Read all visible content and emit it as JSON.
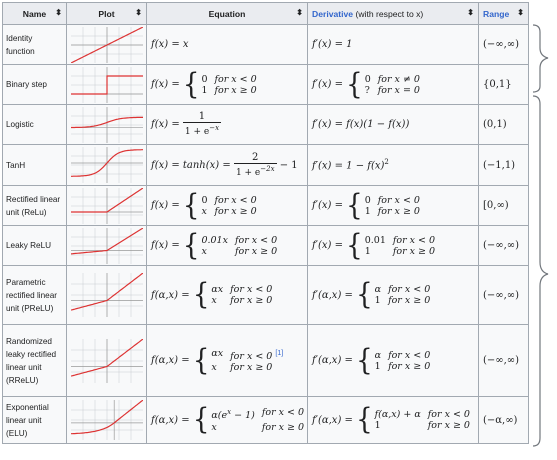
{
  "headers": {
    "name": "Name",
    "plot": "Plot",
    "equation": "Equation",
    "derivative": "Derivative",
    "derivative_suffix": "(with respect to x)",
    "range": "Range",
    "sort_glyph": "⬍"
  },
  "rows": [
    {
      "name": "Identity function",
      "range": "(−∞,∞)",
      "plot": "identity"
    },
    {
      "name": "Binary step",
      "range": "{0,1}",
      "plot": "step"
    },
    {
      "name": "Logistic",
      "range": "(0,1)",
      "plot": "logistic"
    },
    {
      "name": "TanH",
      "range": "(−1,1)",
      "plot": "tanh"
    },
    {
      "name": "Rectified linear unit (ReLu)",
      "range": "[0,∞)",
      "plot": "relu"
    },
    {
      "name": "Leaky ReLU",
      "range": "(−∞,∞)",
      "plot": "leaky"
    },
    {
      "name": "Parametric rectified linear unit (PReLU)",
      "range": "(−∞,∞)",
      "plot": "prelu"
    },
    {
      "name": "Randomized leaky rectified linear unit (RReLU)",
      "range": "(−∞,∞)",
      "plot": "rrelu"
    },
    {
      "name": "Exponential linear unit (ELU)",
      "range": "(−α,∞)",
      "plot": "elu"
    }
  ],
  "eq": {
    "identity": "f(x) = x",
    "identity_der": "f′(x) = 1",
    "lt0": "for x < 0",
    "ge0": "for x ≥ 0",
    "ne0": "for x ≠ 0",
    "eq0": "for x = 0",
    "f_x": "f(x) =",
    "fp_x": "f′(x) =",
    "f_ax": "f(α,x) =",
    "fp_ax": "f′(α,x) =",
    "zero": "0",
    "one": "1",
    "q": "?",
    "x": "x",
    "alpha": "α",
    "alpha_x": "αx",
    "leak_x": "0.01x",
    "leak_d": "0.01",
    "logistic_num": "1",
    "logistic_den": "1 + e",
    "logistic_exp": "−x",
    "logistic_der": "f′(x) = f(x)(1 − f(x))",
    "tanh_lhs": "f(x) = tanh(x) =",
    "tanh_num": "2",
    "tanh_den": "1 + e",
    "tanh_exp": "−2x",
    "tanh_rest": "− 1",
    "tanh_der": "f′(x) = 1 − f(x)",
    "sq": "2",
    "elu_case": "α(e",
    "elu_exp": "x",
    "elu_close": " − 1)",
    "elu_der_case": "f(α,x) + α",
    "ref1": "[1]"
  },
  "colors": {
    "curve": "#d33",
    "grid": "#c8ccd1",
    "border": "#a2a9b1",
    "header_bg": "#eaecf0",
    "cell_bg": "#f8f9fa",
    "link": "#3366cc"
  }
}
